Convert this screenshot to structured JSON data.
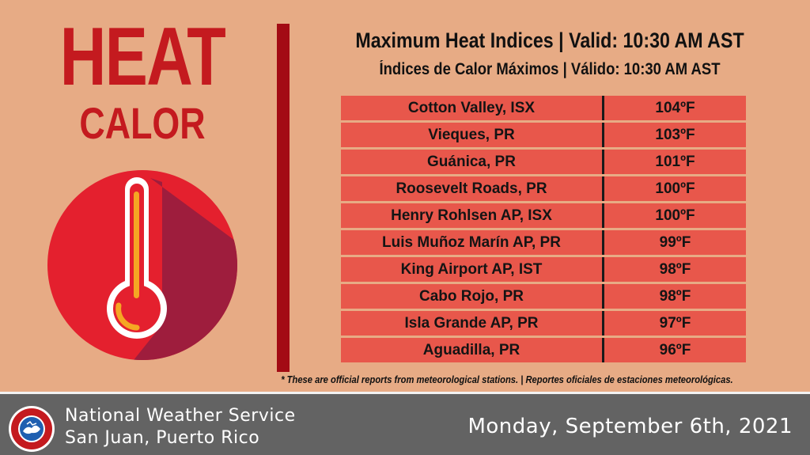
{
  "left": {
    "heading_en": "HEAT",
    "heading_es": "CALOR",
    "icon": "thermometer-icon"
  },
  "header": {
    "title_en": "Maximum Heat Indices | Valid: 10:30 AM AST",
    "title_es": "Índices de Calor Máximos | Válido: 10:30 AM AST"
  },
  "rows": [
    {
      "location": "Cotton Valley, ISX",
      "value": "104ºF"
    },
    {
      "location": "Vieques, PR",
      "value": "103ºF"
    },
    {
      "location": "Guánica, PR",
      "value": "101ºF"
    },
    {
      "location": "Roosevelt Roads, PR",
      "value": "100ºF"
    },
    {
      "location": "Henry Rohlsen AP, ISX",
      "value": "100ºF"
    },
    {
      "location": "Luis Muñoz Marín AP, PR",
      "value": "99ºF"
    },
    {
      "location": "King Airport AP, IST",
      "value": "98ºF"
    },
    {
      "location": "Cabo Rojo, PR",
      "value": "98ºF"
    },
    {
      "location": "Isla Grande AP, PR",
      "value": "97ºF"
    },
    {
      "location": "Aguadilla, PR",
      "value": "96ºF"
    }
  ],
  "footnote": "* These are official reports from meteorological stations. | Reportes oficiales de estaciones meteorológicas.",
  "footer": {
    "org_name": "National Weather Service",
    "org_city": "San Juan, Puerto Rico",
    "date": "Monday, September 6th, 2021",
    "logo_icon": "nws-logo-icon"
  },
  "colors": {
    "background": "#e7ab85",
    "heading_red": "#c41a1f",
    "divider": "#a30b14",
    "row_fill": "#e8574b",
    "footer_bg": "#636363"
  }
}
